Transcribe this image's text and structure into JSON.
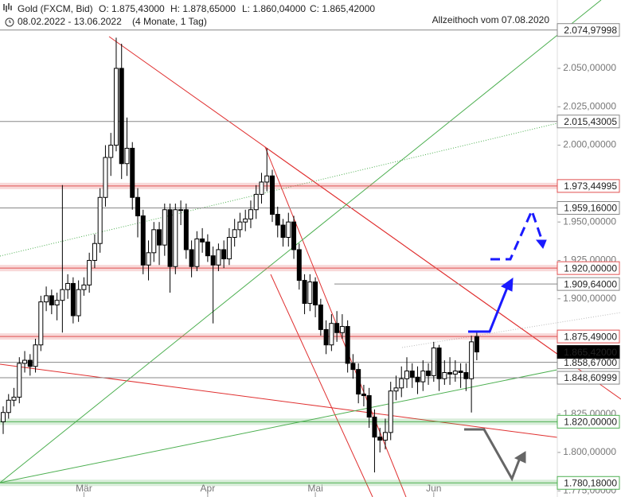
{
  "header": {
    "instrument": "Gold (FXCM, Bid)",
    "ohlc": [
      "O: 1.875,43000",
      "H: 1.878,65000",
      "L: 1.860,04000",
      "C: 1.865,42000"
    ],
    "period": "08.02.2022 - 13.06.2022",
    "span": "(4 Monate, 1 Tag)",
    "note": "Allzeithoch vom 07.08.2020"
  },
  "chart_data": {
    "type": "candlestick",
    "categories": [
      null,
      null,
      null,
      null,
      null,
      null,
      null,
      null,
      null,
      null,
      null,
      null,
      null,
      null,
      null,
      "Mär",
      null,
      null,
      null,
      null,
      null,
      null,
      null,
      null,
      null,
      null,
      null,
      null,
      null,
      null,
      null,
      null,
      null,
      null,
      null,
      null,
      null,
      null,
      "Apr",
      null,
      null,
      null,
      null,
      null,
      null,
      null,
      null,
      null,
      null,
      null,
      null,
      null,
      null,
      null,
      null,
      null,
      null,
      null,
      "Mai",
      null,
      null,
      null,
      null,
      null,
      null,
      null,
      null,
      null,
      null,
      null,
      null,
      null,
      null,
      null,
      null,
      null,
      null,
      null,
      null,
      null,
      "Jun",
      null,
      null,
      null,
      null,
      null,
      null,
      null,
      null
    ],
    "open": [
      1820,
      1826,
      1834,
      1836,
      1858,
      1860,
      1856,
      1870,
      1898,
      1902,
      1896,
      1899,
      1906,
      1910,
      1889,
      1906,
      1909,
      1925,
      1936,
      1966,
      1992,
      2000,
      2050,
      1988,
      1998,
      1966,
      1954,
      1922,
      1930,
      1945,
      1935,
      1958,
      1921,
      1958,
      1958,
      1932,
      1921,
      1939,
      1937,
      1928,
      1922,
      1932,
      1926,
      1940,
      1945,
      1950,
      1952,
      1958,
      1968,
      1976,
      1980,
      1955,
      1948,
      1940,
      1950,
      1932,
      1912,
      1897,
      1911,
      1896,
      1880,
      1870,
      1884,
      1878,
      1882,
      1858,
      1854,
      1838,
      1837,
      1823,
      1810,
      1808,
      1813,
      1840,
      1842,
      1848,
      1853,
      1849,
      1846,
      1853,
      1850,
      1868,
      1848,
      1852,
      1851,
      1853,
      1852,
      1848,
      1875.43
    ],
    "high": [
      1830,
      1838,
      1842,
      1862,
      1866,
      1864,
      1874,
      1902,
      1908,
      1906,
      1904,
      1974,
      1916,
      1914,
      1912,
      1914,
      1930,
      1942,
      1972,
      2000,
      2008,
      2070,
      2066,
      2018,
      2002,
      1972,
      1958,
      1938,
      1950,
      1950,
      1962,
      1962,
      1962,
      1964,
      1962,
      1938,
      1944,
      1946,
      1942,
      1934,
      1936,
      1938,
      1946,
      1952,
      1956,
      1958,
      1964,
      1974,
      1982,
      1998,
      1984,
      1960,
      1952,
      1956,
      1954,
      1936,
      1916,
      1916,
      1914,
      1900,
      1886,
      1890,
      1892,
      1890,
      1886,
      1864,
      1858,
      1844,
      1842,
      1828,
      1816,
      1822,
      1846,
      1850,
      1856,
      1862,
      1858,
      1856,
      1860,
      1858,
      1872,
      1870,
      1860,
      1862,
      1860,
      1858,
      1858,
      1876,
      1878.65
    ],
    "low": [
      1812,
      1822,
      1830,
      1832,
      1852,
      1850,
      1852,
      1866,
      1892,
      1890,
      1886,
      1878,
      1900,
      1884,
      1885,
      1902,
      1904,
      1920,
      1930,
      1960,
      1980,
      1996,
      1978,
      1980,
      1958,
      1940,
      1916,
      1912,
      1924,
      1922,
      1928,
      1904,
      1916,
      1948,
      1926,
      1914,
      1918,
      1930,
      1924,
      1884,
      1918,
      1920,
      1922,
      1934,
      1940,
      1944,
      1946,
      1952,
      1962,
      1970,
      1950,
      1940,
      1934,
      1934,
      1926,
      1906,
      1890,
      1892,
      1888,
      1876,
      1864,
      1866,
      1872,
      1874,
      1852,
      1848,
      1832,
      1830,
      1816,
      1787,
      1800,
      1802,
      1808,
      1834,
      1836,
      1842,
      1842,
      1838,
      1840,
      1844,
      1846,
      1840,
      1844,
      1844,
      1846,
      1842,
      1840,
      1826,
      1860.04
    ],
    "close": [
      1826,
      1834,
      1836,
      1858,
      1860,
      1856,
      1870,
      1898,
      1902,
      1896,
      1899,
      1906,
      1910,
      1889,
      1906,
      1909,
      1925,
      1936,
      1966,
      1992,
      2000,
      2050,
      1988,
      1998,
      1966,
      1954,
      1922,
      1930,
      1945,
      1935,
      1958,
      1921,
      1958,
      1958,
      1932,
      1921,
      1939,
      1937,
      1928,
      1922,
      1932,
      1926,
      1940,
      1945,
      1950,
      1952,
      1958,
      1968,
      1976,
      1980,
      1955,
      1948,
      1940,
      1950,
      1932,
      1912,
      1897,
      1911,
      1896,
      1880,
      1870,
      1884,
      1878,
      1882,
      1858,
      1854,
      1838,
      1837,
      1823,
      1810,
      1808,
      1813,
      1840,
      1842,
      1848,
      1853,
      1849,
      1846,
      1853,
      1850,
      1868,
      1848,
      1852,
      1851,
      1853,
      1852,
      1848,
      1872,
      1865.42
    ],
    "ylim": [
      1771,
      2094.5
    ],
    "yticks": [
      {
        "value": 2050,
        "label": "2.050,00000"
      },
      {
        "value": 2025,
        "label": "2.025,00000"
      },
      {
        "value": 2000,
        "label": "2.000,00000"
      },
      {
        "value": 1950,
        "label": "1.950,00000"
      },
      {
        "value": 1925,
        "label": "1.925,00000"
      },
      {
        "value": 1900,
        "label": "1.900,00000"
      },
      {
        "value": 1825,
        "label": "1.825,00000"
      },
      {
        "value": 1800,
        "label": "1.800,00000"
      },
      {
        "value": 1775,
        "label": "1.775,00000"
      }
    ],
    "levels": [
      {
        "value": 2074.97998,
        "label": "2.074,97998",
        "color": "#888888",
        "band": false
      },
      {
        "value": 2015.43005,
        "label": "2.015,43005",
        "color": "#888888",
        "band": false
      },
      {
        "value": 1973.44995,
        "label": "1.973,44995",
        "color": "#e05050",
        "band": true
      },
      {
        "value": 1959.16,
        "label": "1.959,16000",
        "color": "#888888",
        "band": false
      },
      {
        "value": 1920,
        "label": "1.920,00000",
        "color": "#e05050",
        "band": true
      },
      {
        "value": 1909.64,
        "label": "1.909,64000",
        "color": "#888888",
        "band": false
      },
      {
        "value": 1875.49,
        "label": "1.875,49000",
        "color": "#e05050",
        "band": true
      },
      {
        "value": 1858.67,
        "label": "1.858,67000",
        "color": "#888888",
        "band": false
      },
      {
        "value": 1848.60999,
        "label": "1.848,60999",
        "color": "#888888",
        "band": false
      },
      {
        "value": 1820,
        "label": "1.820,00000",
        "color": "#4caf50",
        "band": true
      },
      {
        "value": 1780.18,
        "label": "1.780,18000",
        "color": "#4caf50",
        "band": true
      },
      {
        "value": 1865.42,
        "label": "1.865,42000",
        "color": "#000000",
        "band": false
      }
    ]
  }
}
